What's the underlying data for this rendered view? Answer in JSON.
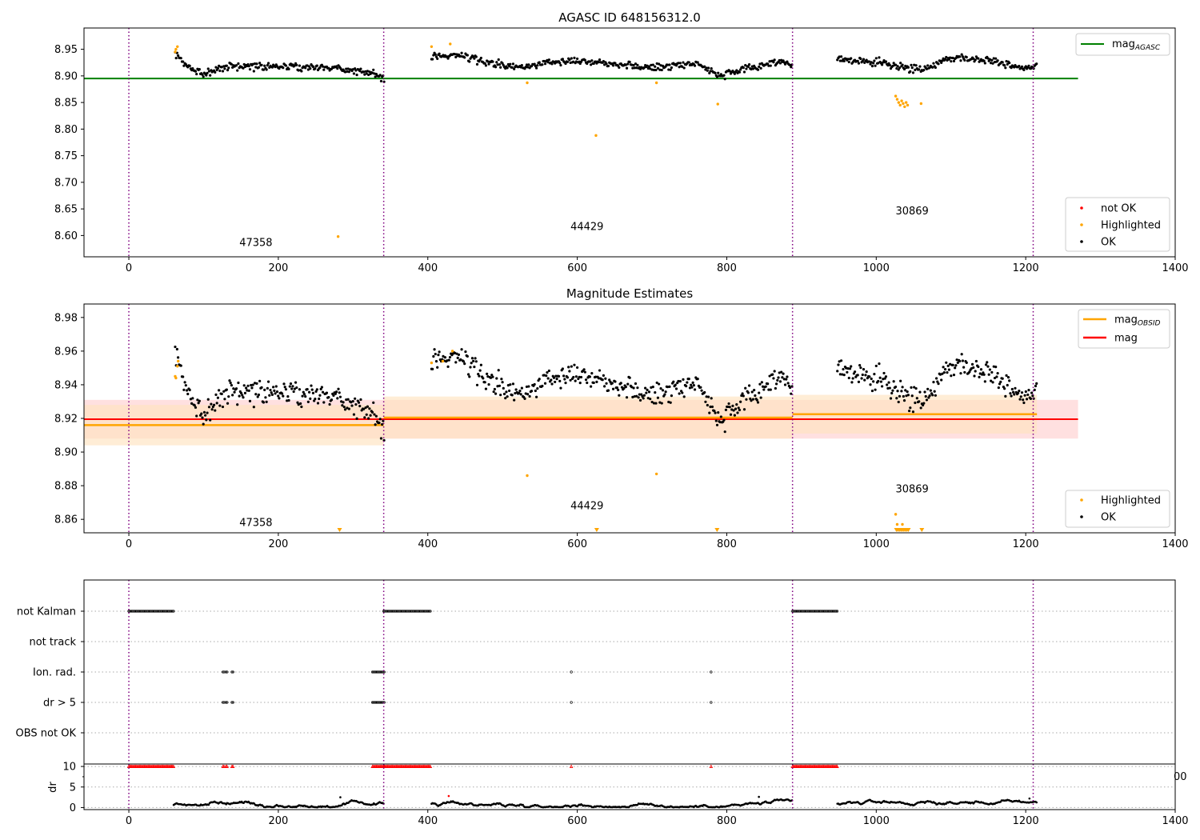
{
  "titles": {
    "top": "AGASC ID 648156312.0",
    "middle": "Magnitude Estimates"
  },
  "colors": {
    "ok": "#000000",
    "highlighted": "#ffa500",
    "not_ok": "#ff0000",
    "agasc_line": "#008000",
    "obsid_line": "#ffa500",
    "mag_line": "#ff0000",
    "obsid_band": "#ffe3c0",
    "mag_band": "#ffcccc",
    "obs_divider": "#800080"
  },
  "chart_data": [
    {
      "id": "top",
      "type": "scatter",
      "title": "AGASC ID 648156312.0",
      "xlim": [
        -60,
        1400
      ],
      "ylim": [
        8.56,
        8.99
      ],
      "xticks": [
        0,
        200,
        400,
        600,
        800,
        1000,
        1200,
        1400
      ],
      "yticks": [
        8.6,
        8.65,
        8.7,
        8.75,
        8.8,
        8.85,
        8.9,
        8.95
      ],
      "obs_boundaries": [
        0,
        341,
        888,
        1210
      ],
      "obsids": [
        {
          "label": "47358",
          "x": 170,
          "y": 8.58
        },
        {
          "label": "44429",
          "x": 613,
          "y": 8.61
        },
        {
          "label": "30869",
          "x": 1048,
          "y": 8.64
        }
      ],
      "lines": [
        {
          "name": "mag_AGASC",
          "label_main": "mag",
          "label_sub": "AGASC",
          "y": 8.895,
          "x": [
            -60,
            1270
          ],
          "color": "#008000"
        }
      ],
      "segments": [
        {
          "x0": 62,
          "x1": 342,
          "start": 8.94,
          "trend": [
            [
              62,
              8.94
            ],
            [
              80,
              8.915
            ],
            [
              100,
              8.905
            ],
            [
              130,
              8.918
            ],
            [
              200,
              8.918
            ],
            [
              280,
              8.915
            ],
            [
              330,
              8.903
            ],
            [
              342,
              8.895
            ]
          ],
          "noise": 0.008
        },
        {
          "x0": 405,
          "x1": 888,
          "trend": [
            [
              405,
              8.935
            ],
            [
              440,
              8.94
            ],
            [
              480,
              8.925
            ],
            [
              520,
              8.915
            ],
            [
              580,
              8.93
            ],
            [
              640,
              8.925
            ],
            [
              700,
              8.915
            ],
            [
              760,
              8.925
            ],
            [
              790,
              8.9
            ],
            [
              820,
              8.91
            ],
            [
              860,
              8.925
            ],
            [
              888,
              8.925
            ]
          ],
          "noise": 0.008
        },
        {
          "x0": 948,
          "x1": 1215,
          "trend": [
            [
              948,
              8.93
            ],
            [
              1000,
              8.925
            ],
            [
              1025,
              8.92
            ],
            [
              1060,
              8.91
            ],
            [
              1100,
              8.935
            ],
            [
              1150,
              8.93
            ],
            [
              1200,
              8.915
            ],
            [
              1215,
              8.92
            ]
          ],
          "noise": 0.008
        }
      ],
      "highlighted_points": [
        [
          62,
          8.945
        ],
        [
          63,
          8.95
        ],
        [
          65,
          8.955
        ],
        [
          280,
          8.598
        ],
        [
          405,
          8.955
        ],
        [
          430,
          8.96
        ],
        [
          533,
          8.887
        ],
        [
          625,
          8.788
        ],
        [
          706,
          8.887
        ],
        [
          788,
          8.847
        ],
        [
          1026,
          8.862
        ],
        [
          1028,
          8.856
        ],
        [
          1030,
          8.85
        ],
        [
          1032,
          8.845
        ],
        [
          1034,
          8.853
        ],
        [
          1036,
          8.848
        ],
        [
          1038,
          8.842
        ],
        [
          1040,
          8.85
        ],
        [
          1042,
          8.845
        ],
        [
          1060,
          8.848
        ]
      ],
      "legends": [
        {
          "position": "top-right",
          "entries": [
            {
              "kind": "line",
              "color": "#008000",
              "label_main": "mag",
              "label_sub": "AGASC"
            }
          ]
        },
        {
          "position": "lower-right",
          "entries": [
            {
              "kind": "dot",
              "color": "#ff0000",
              "label": "not OK"
            },
            {
              "kind": "dot",
              "color": "#ffa500",
              "label": "Highlighted"
            },
            {
              "kind": "dot",
              "color": "#000000",
              "label": "OK"
            }
          ]
        }
      ]
    },
    {
      "id": "middle",
      "type": "scatter",
      "title": "Magnitude Estimates",
      "xlim": [
        -60,
        1400
      ],
      "ylim": [
        8.852,
        8.988
      ],
      "xticks": [
        0,
        200,
        400,
        600,
        800,
        1000,
        1200,
        1400
      ],
      "yticks": [
        8.86,
        8.88,
        8.9,
        8.92,
        8.94,
        8.96,
        8.98
      ],
      "obs_boundaries": [
        0,
        341,
        888,
        1210
      ],
      "obsids": [
        {
          "label": "47358",
          "x": 170,
          "y": 8.856
        },
        {
          "label": "44429",
          "x": 613,
          "y": 8.866
        },
        {
          "label": "30869",
          "x": 1048,
          "y": 8.876
        }
      ],
      "mag": {
        "value": 8.9195,
        "band": [
          8.908,
          8.931
        ],
        "x": [
          -60,
          1270
        ]
      },
      "obsid_mags": [
        {
          "x0": -60,
          "x1": 341,
          "value": 8.916,
          "band": [
            8.904,
            8.928
          ]
        },
        {
          "x0": 341,
          "x1": 888,
          "value": 8.9205,
          "band": [
            8.908,
            8.933
          ]
        },
        {
          "x0": 888,
          "x1": 1215,
          "value": 8.9225,
          "band": [
            8.911,
            8.934
          ]
        }
      ],
      "highlighted_points": [
        [
          62,
          8.945
        ],
        [
          63,
          8.944
        ],
        [
          65,
          8.951
        ],
        [
          66,
          8.954
        ],
        [
          405,
          8.953
        ],
        [
          420,
          8.954
        ],
        [
          433,
          8.96
        ],
        [
          533,
          8.886
        ],
        [
          706,
          8.887
        ],
        [
          1026,
          8.863
        ],
        [
          1028,
          8.857
        ],
        [
          1035,
          8.857
        ]
      ],
      "clipped_points_x": [
        282,
        626,
        787,
        1027,
        1029,
        1031,
        1033,
        1035,
        1037,
        1039,
        1041,
        1043,
        1061
      ],
      "legends": [
        {
          "position": "top-right",
          "entries": [
            {
              "kind": "line",
              "color": "#ffa500",
              "label_main": "mag",
              "label_sub": "OBSID"
            },
            {
              "kind": "line",
              "color": "#ff0000",
              "label_main": "mag",
              "label_sub": ""
            }
          ]
        },
        {
          "position": "lower-right",
          "entries": [
            {
              "kind": "dot",
              "color": "#ffa500",
              "label": "Highlighted"
            },
            {
              "kind": "dot",
              "color": "#000000",
              "label": "OK"
            }
          ]
        }
      ]
    },
    {
      "id": "flags",
      "type": "scatter",
      "xlim": [
        -60,
        1400
      ],
      "categories": [
        "not Kalman",
        "not track",
        "Ion. rad.",
        "dr > 5",
        "OBS not OK"
      ],
      "obs_boundaries": [
        0,
        341,
        888,
        1210
      ],
      "flag_ranges": {
        "not Kalman": [
          [
            0,
            60
          ],
          [
            341,
            404
          ],
          [
            888,
            948
          ]
        ],
        "not track": [],
        "Ion. rad.": [
          [
            126,
            128
          ],
          [
            130,
            132
          ],
          [
            138,
            140
          ],
          [
            326,
            342
          ],
          [
            592,
            593
          ],
          [
            779,
            780
          ]
        ],
        "dr > 5": [
          [
            126,
            128
          ],
          [
            130,
            132
          ],
          [
            138,
            140
          ],
          [
            326,
            342
          ],
          [
            592,
            593
          ],
          [
            779,
            780
          ]
        ],
        "OBS not OK": []
      }
    },
    {
      "id": "dr",
      "type": "line",
      "ylabel": "dr",
      "xlim": [
        -60,
        1400
      ],
      "ylim": [
        -0.5,
        10.6
      ],
      "yticks": [
        0,
        5,
        10
      ],
      "xticks": [
        0,
        200,
        400,
        600,
        800,
        1000,
        1200,
        1400
      ],
      "cropped_tick_label": "00",
      "obs_boundaries": [
        0,
        341,
        888,
        1210
      ],
      "red_ranges": [
        [
          0,
          60
        ],
        [
          126,
          128
        ],
        [
          130,
          132
        ],
        [
          138,
          140
        ],
        [
          326,
          342
        ],
        [
          341,
          404
        ],
        [
          592,
          593
        ],
        [
          779,
          780
        ],
        [
          888,
          948
        ]
      ],
      "red_level": 10,
      "dr_segments": [
        [
          60,
          342
        ],
        [
          405,
          888
        ],
        [
          948,
          1215
        ]
      ],
      "dr_spikes": [
        [
          283,
          2.5
        ],
        [
          428,
          2.8
        ],
        [
          843,
          2.6
        ],
        [
          1205,
          2.2
        ]
      ]
    }
  ]
}
